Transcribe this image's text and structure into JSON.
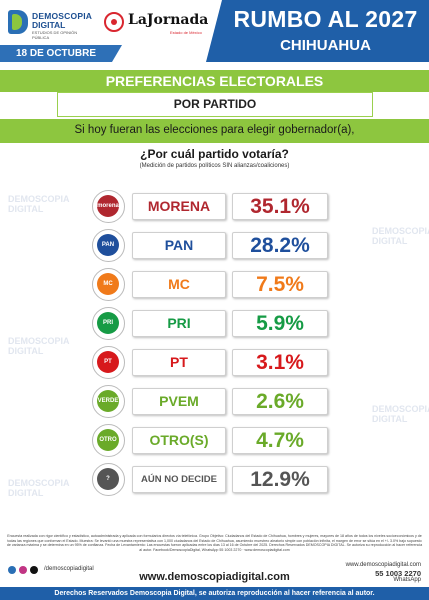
{
  "brand": {
    "logo_line1": "DEMOSCOPIA",
    "logo_line2": "DIGITAL",
    "logo_tagline": "ESTUDIOS DE OPINIÓN PÚBLICA",
    "partner_name": "LaJornada",
    "partner_sub": "Estado de México"
  },
  "header": {
    "date": "18 DE OCTUBRE",
    "title": "RUMBO AL 2027",
    "subtitle": "CHIHUAHUA"
  },
  "section": {
    "heading": "PREFERENCIAS ELECTORALES",
    "subheading": "POR PARTIDO",
    "question_intro": "Si hoy fueran las elecciones para elegir gobernador(a),",
    "question": "¿Por cuál partido votaría?",
    "note": "(Medición de partidos políticos SIN alianzas/coaliciones)"
  },
  "chart_data": {
    "type": "table",
    "title": "PREFERENCIAS ELECTORALES",
    "categories": [
      "MORENA",
      "PAN",
      "MC",
      "PRI",
      "PT",
      "PVEM",
      "OTRO(S)",
      "AÚN NO DECIDE"
    ],
    "values": [
      35.1,
      28.2,
      7.5,
      5.9,
      3.1,
      2.6,
      4.7,
      12.9
    ],
    "display": [
      "35.1%",
      "28.2%",
      "7.5%",
      "5.9%",
      "3.1%",
      "2.6%",
      "4.7%",
      "12.9%"
    ],
    "colors": [
      "#b0272f",
      "#1f4f9c",
      "#f07a1a",
      "#169b45",
      "#d7191c",
      "#6aaa29",
      "#6aaa29",
      "#555555"
    ],
    "logo_labels": [
      "morena",
      "PAN",
      "MC",
      "PRI",
      "PT",
      "VERDE",
      "OTRO",
      "?"
    ]
  },
  "footer": {
    "methodology": "Encuesta realizada con rigor científico y estadístico, autoadministrada y aplicada con formularios directos vía telefónica. Grupo Objetivo: Ciudadanos del Estado de Chihuahua, hombres y mujeres, mayores de 18 años de todos los niveles socioeconómicos y de todas las regiones que conforman el Estado. Muestra: Se levantó una muestra representativa con 1,000 ciudadanos del Estado de Chihuahua, asumiendo muestreo aleatorio simple con población infinita, el margen de error se sitúa en el +/- 3.0% bajo supuesto de varianza máxima y se determina en un 95% de confianza. Fecha de Levantamiento: Las encuestas fueron aplicadas entre los días 13 al 16 de Octubre del 2025. Derechos Reservados DEMOSCOPIA DIGITAL. Se autoriza su reproducción al hacer referencia al autor. Facebook/DemoscopiaDigital, WhatsApp 55 1003 2270 · www.demoscopiadigital.com",
    "social_handle": "/demoscopiadigital",
    "website": "www.demoscopiadigital.com",
    "contact_site": "www.demoscopiadigital.com",
    "phone": "55 1003 2270",
    "whatsapp": "WhatsApp",
    "rights": "Derechos Reservados Demoscopia Digital, se autoriza reproducción al hacer referencia al autor."
  }
}
